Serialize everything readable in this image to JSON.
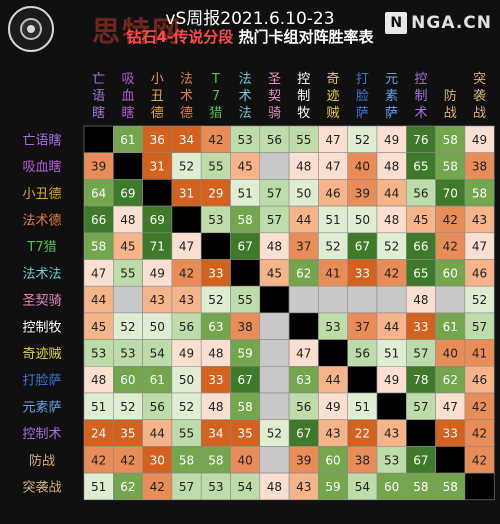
{
  "header": {
    "title": "vS周报2021.6.10-23",
    "subtitle_highlight": "钻石4-传说分段",
    "subtitle_rest": " 热门卡组对阵胜率表",
    "watermark": "思特网",
    "source_logo": "NGA.CN",
    "source_icon": "N"
  },
  "colors": {
    "background": "#101010",
    "diagonal": "#000000",
    "empty": "#c8c8c8",
    "deep_green": "#3e7a2a",
    "mid_green": "#74a74d",
    "light_green": "#bedcaa",
    "pale_green": "#dfeed3",
    "pale_orange": "#fbe0d1",
    "light_orange": "#f6b48b",
    "orange": "#e98d58",
    "deep_orange": "#d4621f"
  },
  "chart_data": {
    "type": "heatmap",
    "title": "vS周报2021.6.10-23 钻石4-传说分段 热门卡组对阵胜率表",
    "decks": [
      "亡语瞎",
      "吸血瞎",
      "小丑德",
      "法术德",
      "T7猎",
      "法术法",
      "圣契骑",
      "控制牧",
      "奇迹贼",
      "打脸萨",
      "元素萨",
      "控制术",
      "防战",
      "突袭战"
    ],
    "column_labels": [
      "亡\n语\n瞎",
      "吸\n血\n瞎",
      "小\n丑\n德",
      "法\n术\n德",
      "T\n7\n猎",
      "法\n术\n法",
      "圣\n契\n骑",
      "控\n制\n牧",
      "奇\n迹\n贼",
      "打\n脸\n萨",
      "元\n素\n萨",
      "控\n制\n术",
      "防\n战",
      "突\n袭\n战"
    ],
    "label_colors": [
      "#a670e0",
      "#b15ad6",
      "#e2a23b",
      "#e07d43",
      "#4fc24f",
      "#6fc9d6",
      "#e28ac0",
      "#ffffff",
      "#e6d23a",
      "#3a73d6",
      "#6aa0e6",
      "#a670e0",
      "#d9b07a",
      "#d9b07a"
    ],
    "values": [
      [
        null,
        61,
        36,
        34,
        42,
        53,
        56,
        55,
        47,
        52,
        49,
        76,
        58,
        49
      ],
      [
        39,
        null,
        31,
        52,
        55,
        45,
        null,
        48,
        47,
        40,
        48,
        65,
        58,
        38
      ],
      [
        64,
        69,
        null,
        31,
        29,
        51,
        57,
        50,
        46,
        39,
        44,
        56,
        70,
        58
      ],
      [
        66,
        48,
        69,
        null,
        53,
        58,
        57,
        44,
        51,
        50,
        48,
        45,
        42,
        43
      ],
      [
        58,
        45,
        71,
        47,
        null,
        67,
        48,
        37,
        52,
        67,
        52,
        66,
        42,
        47
      ],
      [
        47,
        55,
        49,
        42,
        33,
        null,
        45,
        62,
        41,
        33,
        42,
        65,
        60,
        46
      ],
      [
        44,
        null,
        43,
        43,
        52,
        55,
        null,
        null,
        null,
        null,
        null,
        48,
        null,
        52
      ],
      [
        45,
        52,
        50,
        56,
        63,
        38,
        null,
        null,
        53,
        37,
        44,
        33,
        61,
        57
      ],
      [
        53,
        53,
        54,
        49,
        48,
        59,
        null,
        47,
        null,
        56,
        51,
        57,
        40,
        41
      ],
      [
        48,
        60,
        61,
        50,
        33,
        67,
        null,
        63,
        44,
        null,
        49,
        78,
        62,
        46
      ],
      [
        51,
        52,
        56,
        52,
        48,
        58,
        null,
        56,
        49,
        51,
        null,
        57,
        47,
        42
      ],
      [
        24,
        35,
        44,
        55,
        34,
        35,
        52,
        67,
        43,
        22,
        43,
        null,
        33,
        42
      ],
      [
        42,
        42,
        30,
        58,
        58,
        40,
        null,
        39,
        60,
        38,
        53,
        67,
        null,
        42
      ],
      [
        51,
        62,
        42,
        57,
        53,
        54,
        48,
        43,
        59,
        54,
        60,
        58,
        58,
        null
      ]
    ]
  }
}
